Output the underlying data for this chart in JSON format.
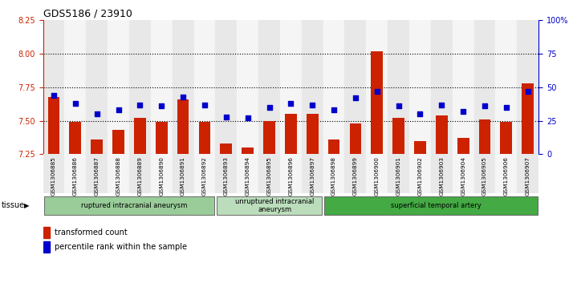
{
  "title": "GDS5186 / 23910",
  "samples": [
    "GSM1306885",
    "GSM1306886",
    "GSM1306887",
    "GSM1306888",
    "GSM1306889",
    "GSM1306890",
    "GSM1306891",
    "GSM1306892",
    "GSM1306893",
    "GSM1306894",
    "GSM1306895",
    "GSM1306896",
    "GSM1306897",
    "GSM1306898",
    "GSM1306899",
    "GSM1306900",
    "GSM1306901",
    "GSM1306902",
    "GSM1306903",
    "GSM1306904",
    "GSM1306905",
    "GSM1306906",
    "GSM1306907"
  ],
  "bar_values": [
    7.68,
    7.49,
    7.36,
    7.43,
    7.52,
    7.49,
    7.66,
    7.49,
    7.33,
    7.3,
    7.5,
    7.55,
    7.55,
    7.36,
    7.48,
    8.02,
    7.52,
    7.35,
    7.54,
    7.37,
    7.51,
    7.49,
    7.78
  ],
  "dot_values": [
    44,
    38,
    30,
    33,
    37,
    36,
    43,
    37,
    28,
    27,
    35,
    38,
    37,
    33,
    42,
    47,
    36,
    30,
    37,
    32,
    36,
    35,
    47
  ],
  "ylim_left": [
    7.25,
    8.25
  ],
  "ylim_right": [
    0,
    100
  ],
  "yticks_left": [
    7.25,
    7.5,
    7.75,
    8.0,
    8.25
  ],
  "yticks_right": [
    0,
    25,
    50,
    75,
    100
  ],
  "ytick_labels_right": [
    "0",
    "25",
    "50",
    "75",
    "100%"
  ],
  "bar_color": "#cc2200",
  "dot_color": "#0000cc",
  "groups": [
    {
      "label": "ruptured intracranial aneurysm",
      "start": 0,
      "end": 8,
      "color": "#99cc99"
    },
    {
      "label": "unruptured intracranial\naneurysm",
      "start": 8,
      "end": 13,
      "color": "#bbddbb"
    },
    {
      "label": "superficial temporal artery",
      "start": 13,
      "end": 23,
      "color": "#44aa44"
    }
  ],
  "legend_items": [
    {
      "label": "transformed count",
      "color": "#cc2200"
    },
    {
      "label": "percentile rank within the sample",
      "color": "#0000cc"
    }
  ],
  "tissue_label": "tissue",
  "background_color": "#ffffff",
  "xlabel_color": "#cc2200",
  "ylabel_right_color": "#0000cc",
  "ybaseline": 7.25
}
